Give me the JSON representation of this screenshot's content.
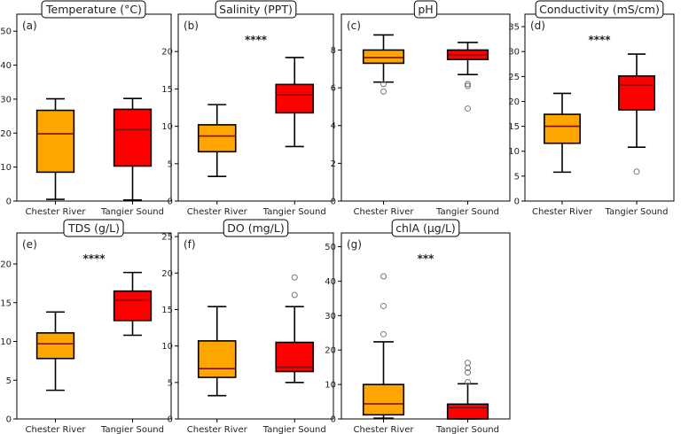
{
  "chart_data": [
    {
      "type": "box",
      "letter": "(a)",
      "title": "Temperature (°C)",
      "categories": [
        "Chester River",
        "Tangier Sound"
      ],
      "ylim": [
        0,
        55
      ],
      "yticks": [
        0,
        10,
        20,
        30,
        40,
        50
      ],
      "significance": "",
      "boxes": [
        {
          "whislo": 0.5,
          "q1": 8.5,
          "med": 19.8,
          "q3": 26.7,
          "whishi": 30.1,
          "fliers": [],
          "color": "#FFA500"
        },
        {
          "whislo": 0.3,
          "q1": 10.3,
          "med": 21.0,
          "q3": 27.0,
          "whishi": 30.2,
          "fliers": [],
          "color": "#FF0000"
        }
      ]
    },
    {
      "type": "box",
      "letter": "(b)",
      "title": "Salinity (PPT)",
      "categories": [
        "Chester River",
        "Tangier Sound"
      ],
      "ylim": [
        0,
        25
      ],
      "yticks": [
        0,
        5,
        10,
        15,
        20
      ],
      "significance": "****",
      "boxes": [
        {
          "whislo": 3.3,
          "q1": 6.6,
          "med": 8.7,
          "q3": 10.2,
          "whishi": 12.9,
          "fliers": [],
          "color": "#FFA500"
        },
        {
          "whislo": 7.3,
          "q1": 11.8,
          "med": 14.2,
          "q3": 15.6,
          "whishi": 19.2,
          "fliers": [],
          "color": "#FF0000"
        }
      ]
    },
    {
      "type": "box",
      "letter": "(c)",
      "title": "pH",
      "categories": [
        "Chester River",
        "Tangier Sound"
      ],
      "ylim": [
        0,
        9.9
      ],
      "yticks": [
        0,
        2,
        4,
        6,
        8
      ],
      "significance": "",
      "boxes": [
        {
          "whislo": 6.3,
          "q1": 7.3,
          "med": 7.6,
          "q3": 8.0,
          "whishi": 8.8,
          "fliers": [
            5.8,
            6.2
          ],
          "color": "#FFA500"
        },
        {
          "whislo": 6.7,
          "q1": 7.5,
          "med": 7.75,
          "q3": 8.0,
          "whishi": 8.4,
          "fliers": [
            4.9,
            6.1,
            6.2
          ],
          "color": "#FF0000"
        }
      ]
    },
    {
      "type": "box",
      "letter": "(d)",
      "title": "Conductivity (mS/cm)",
      "categories": [
        "Chester River",
        "Tangier Sound"
      ],
      "ylim": [
        0,
        37.5
      ],
      "yticks": [
        0,
        5,
        10,
        15,
        20,
        25,
        30,
        35
      ],
      "significance": "****",
      "boxes": [
        {
          "whislo": 5.8,
          "q1": 11.6,
          "med": 15.0,
          "q3": 17.4,
          "whishi": 21.6,
          "fliers": [],
          "color": "#FFA500"
        },
        {
          "whislo": 10.8,
          "q1": 18.3,
          "med": 23.3,
          "q3": 25.1,
          "whishi": 29.5,
          "fliers": [
            5.9
          ],
          "color": "#FF0000"
        }
      ]
    },
    {
      "type": "box",
      "letter": "(e)",
      "title": "TDS (g/L)",
      "categories": [
        "Chester River",
        "Tangier Sound"
      ],
      "ylim": [
        0,
        24
      ],
      "yticks": [
        0,
        5,
        10,
        15,
        20
      ],
      "significance": "****",
      "boxes": [
        {
          "whislo": 3.7,
          "q1": 7.8,
          "med": 9.7,
          "q3": 11.1,
          "whishi": 13.8,
          "fliers": [],
          "color": "#FFA500"
        },
        {
          "whislo": 10.8,
          "q1": 12.7,
          "med": 15.3,
          "q3": 16.5,
          "whishi": 18.9,
          "fliers": [],
          "color": "#FF0000"
        }
      ]
    },
    {
      "type": "box",
      "letter": "(f)",
      "title": "DO (mg/L)",
      "categories": [
        "Chester River",
        "Tangier Sound"
      ],
      "ylim": [
        0,
        25.5
      ],
      "yticks": [
        0,
        5,
        10,
        15,
        20,
        25
      ],
      "significance": "",
      "boxes": [
        {
          "whislo": 3.2,
          "q1": 5.7,
          "med": 6.9,
          "q3": 10.7,
          "whishi": 15.4,
          "fliers": [],
          "color": "#FFA500"
        },
        {
          "whislo": 5.0,
          "q1": 6.5,
          "med": 7.1,
          "q3": 10.5,
          "whishi": 15.4,
          "fliers": [
            17.0,
            19.4
          ],
          "color": "#FF0000"
        }
      ]
    },
    {
      "type": "box",
      "letter": "(g)",
      "title": "chlA (µg/L)",
      "categories": [
        "Chester River",
        "Tangier Sound"
      ],
      "ylim": [
        0,
        54
      ],
      "yticks": [
        0,
        10,
        20,
        30,
        40,
        50
      ],
      "significance": "***",
      "boxes": [
        {
          "whislo": 0.2,
          "q1": 1.2,
          "med": 4.4,
          "q3": 10.0,
          "whishi": 22.4,
          "fliers": [
            24.6,
            32.8,
            41.4
          ],
          "color": "#FFA500"
        },
        {
          "whislo": 0.0,
          "q1": 0.0,
          "med": 3.3,
          "q3": 4.3,
          "whishi": 10.2,
          "fliers": [
            10.7,
            13.5,
            14.8,
            16.3
          ],
          "color": "#FF0000"
        }
      ]
    }
  ]
}
